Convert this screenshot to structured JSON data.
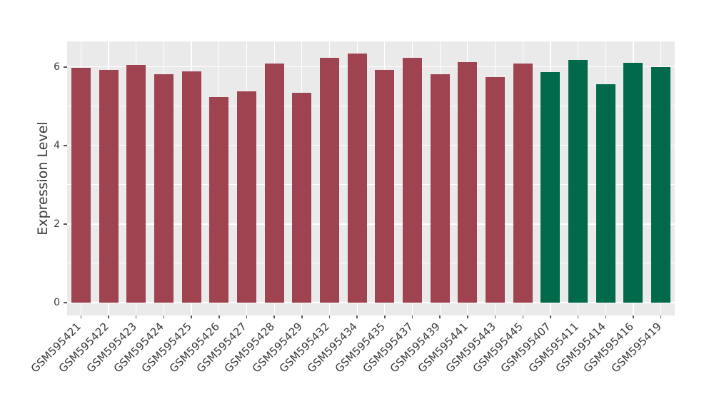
{
  "figure": {
    "background_color": "#FFFFFF",
    "panel_background_color": "#EAEAEA",
    "gridline_color": "#FFFFFF",
    "tick_color": "#555555",
    "text_color": "#3A3A3A"
  },
  "chart_data": {
    "type": "bar",
    "title": "",
    "xlabel": "",
    "ylabel": "Expression Level",
    "legend": "none",
    "grid": "on",
    "x_tick_rotation_deg": 45,
    "ylim": [
      -0.33,
      6.65
    ],
    "yticks_labeled": [
      0,
      2,
      4,
      6
    ],
    "gridlines_y": [
      0,
      1,
      2,
      3,
      4,
      5,
      6
    ],
    "categories": [
      "GSM595421",
      "GSM595422",
      "GSM595423",
      "GSM595424",
      "GSM595425",
      "GSM595426",
      "GSM595427",
      "GSM595428",
      "GSM595429",
      "GSM595432",
      "GSM595434",
      "GSM595435",
      "GSM595437",
      "GSM595439",
      "GSM595441",
      "GSM595443",
      "GSM595445",
      "GSM595407",
      "GSM595411",
      "GSM595414",
      "GSM595416",
      "GSM595419"
    ],
    "values": [
      5.98,
      5.92,
      6.05,
      5.81,
      5.88,
      5.24,
      5.38,
      6.09,
      5.35,
      6.24,
      6.35,
      5.92,
      6.23,
      5.81,
      6.12,
      5.75,
      6.08,
      5.86,
      6.18,
      5.56,
      6.11,
      6.0
    ],
    "bar_groups": [
      "red",
      "red",
      "red",
      "red",
      "red",
      "red",
      "red",
      "red",
      "red",
      "red",
      "red",
      "red",
      "red",
      "red",
      "red",
      "red",
      "red",
      "green",
      "green",
      "green",
      "green",
      "green"
    ],
    "group_colors": {
      "red": "#A04351",
      "green": "#006A4A"
    }
  }
}
